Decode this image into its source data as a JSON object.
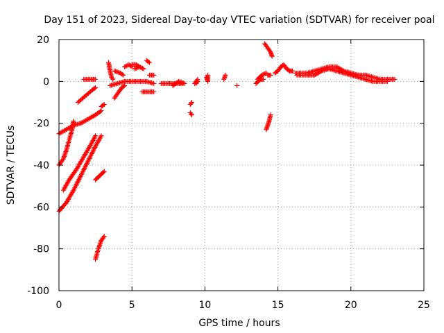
{
  "chart_data": {
    "type": "scatter",
    "title": "Day 151 of 2023, Sidereal Day-to-day VTEC variation (SDTVAR) for receiver poal",
    "xlabel": "GPS time / hours",
    "ylabel": "SDTVAR / TECUs",
    "xlim": [
      0,
      25
    ],
    "ylim": [
      -100,
      20
    ],
    "xticks": [
      0,
      5,
      10,
      15,
      20,
      25
    ],
    "yticks": [
      -100,
      -80,
      -60,
      -40,
      -20,
      0,
      20
    ],
    "grid": true,
    "marker": "+",
    "color": "#ff0000",
    "segments": [
      [
        [
          0.0,
          -25
        ],
        [
          0.5,
          -23
        ],
        [
          1.0,
          -21
        ],
        [
          1.5,
          -20
        ]
      ],
      [
        [
          1.5,
          -20
        ],
        [
          2.0,
          -18
        ],
        [
          2.5,
          -16
        ],
        [
          2.9,
          -14
        ]
      ],
      [
        [
          0.0,
          -40
        ],
        [
          0.3,
          -37
        ],
        [
          0.5,
          -33
        ],
        [
          0.7,
          -28
        ],
        [
          0.9,
          -23
        ],
        [
          1.0,
          -19
        ]
      ],
      [
        [
          0.0,
          -62
        ],
        [
          0.5,
          -58
        ],
        [
          1.0,
          -52
        ],
        [
          1.5,
          -45
        ],
        [
          2.0,
          -38
        ],
        [
          2.5,
          -31
        ],
        [
          2.9,
          -26
        ]
      ],
      [
        [
          0.3,
          -52
        ],
        [
          0.7,
          -47
        ],
        [
          1.2,
          -42
        ],
        [
          1.7,
          -36
        ],
        [
          2.2,
          -30
        ],
        [
          2.5,
          -26
        ]
      ],
      [
        [
          1.3,
          -10
        ],
        [
          1.8,
          -7
        ],
        [
          2.3,
          -4
        ],
        [
          2.5,
          -3
        ]
      ],
      [
        [
          1.7,
          1
        ],
        [
          2.2,
          1
        ],
        [
          2.5,
          1
        ]
      ],
      [
        [
          2.9,
          -12
        ],
        [
          3.1,
          -11
        ]
      ],
      [
        [
          2.5,
          -85
        ],
        [
          2.7,
          -80
        ],
        [
          2.9,
          -76
        ],
        [
          3.1,
          -74
        ]
      ],
      [
        [
          2.5,
          -47
        ],
        [
          2.8,
          -45
        ],
        [
          3.1,
          -43
        ]
      ],
      [
        [
          3.4,
          9
        ],
        [
          3.5,
          5
        ],
        [
          3.6,
          2
        ],
        [
          3.7,
          1
        ]
      ],
      [
        [
          3.5,
          -2
        ],
        [
          4.0,
          -1
        ],
        [
          4.5,
          0
        ],
        [
          5.0,
          0
        ],
        [
          5.5,
          0
        ],
        [
          6.0,
          0
        ],
        [
          6.5,
          -1
        ]
      ],
      [
        [
          3.8,
          5
        ],
        [
          4.2,
          4
        ],
        [
          4.4,
          3
        ]
      ],
      [
        [
          3.8,
          -8
        ],
        [
          4.1,
          -5
        ],
        [
          4.3,
          -3
        ],
        [
          4.5,
          -2
        ]
      ],
      [
        [
          4.5,
          7
        ],
        [
          4.8,
          8
        ],
        [
          5.0,
          7
        ]
      ],
      [
        [
          5.2,
          6
        ],
        [
          5.5,
          7
        ],
        [
          5.8,
          6
        ]
      ],
      [
        [
          5.0,
          8
        ],
        [
          5.3,
          8
        ],
        [
          5.5,
          7
        ]
      ],
      [
        [
          5.7,
          -5
        ],
        [
          6.1,
          -5
        ],
        [
          6.5,
          -5
        ]
      ],
      [
        [
          6.0,
          10
        ],
        [
          6.2,
          9
        ]
      ],
      [
        [
          6.2,
          3
        ],
        [
          6.5,
          3
        ]
      ],
      [
        [
          7.0,
          -1
        ],
        [
          7.5,
          -1
        ],
        [
          8.0,
          -1
        ],
        [
          8.5,
          -1
        ]
      ],
      [
        [
          7.8,
          -2
        ],
        [
          8.2,
          0
        ],
        [
          8.6,
          -1
        ]
      ],
      [
        [
          9.0,
          -11
        ],
        [
          9.1,
          -10
        ]
      ],
      [
        [
          9.0,
          -15
        ],
        [
          9.1,
          -16
        ]
      ],
      [
        [
          9.3,
          -1
        ],
        [
          9.5,
          1
        ]
      ],
      [
        [
          9.4,
          -1
        ],
        [
          9.5,
          0
        ]
      ],
      [
        [
          10.1,
          2
        ],
        [
          10.2,
          0
        ],
        [
          10.2,
          3
        ]
      ],
      [
        [
          11.3,
          1
        ],
        [
          11.4,
          3
        ]
      ],
      [
        [
          12.2,
          -2
        ]
      ],
      [
        [
          13.5,
          -1
        ],
        [
          13.8,
          1
        ],
        [
          14.0,
          1
        ]
      ],
      [
        [
          13.6,
          1
        ],
        [
          13.9,
          3
        ],
        [
          14.2,
          4
        ]
      ],
      [
        [
          14.2,
          -23
        ],
        [
          14.3,
          -21
        ],
        [
          14.4,
          -19
        ],
        [
          14.5,
          -16
        ]
      ],
      [
        [
          14.1,
          18
        ],
        [
          14.3,
          16
        ],
        [
          14.5,
          14
        ],
        [
          14.6,
          12
        ]
      ],
      [
        [
          14.3,
          3
        ],
        [
          14.5,
          3
        ]
      ],
      [
        [
          14.8,
          4
        ],
        [
          15.0,
          5
        ],
        [
          15.2,
          7
        ],
        [
          15.4,
          8
        ],
        [
          15.6,
          6
        ],
        [
          15.8,
          5
        ]
      ],
      [
        [
          15.8,
          5
        ],
        [
          16.0,
          5
        ]
      ],
      [
        [
          16.2,
          4
        ],
        [
          17.0,
          4
        ],
        [
          18.0,
          6
        ],
        [
          18.5,
          7
        ],
        [
          19.0,
          7
        ],
        [
          19.5,
          5
        ],
        [
          20.0,
          4
        ],
        [
          20.5,
          3
        ],
        [
          21.0,
          3
        ],
        [
          21.5,
          2
        ],
        [
          22.0,
          1
        ],
        [
          22.5,
          1
        ],
        [
          23.0,
          1
        ]
      ],
      [
        [
          16.3,
          3
        ],
        [
          17.0,
          3
        ],
        [
          17.5,
          3
        ],
        [
          18.0,
          5
        ],
        [
          18.5,
          6
        ],
        [
          19.5,
          4
        ],
        [
          20.0,
          3
        ],
        [
          20.5,
          2
        ],
        [
          21.0,
          1
        ],
        [
          21.5,
          0
        ],
        [
          22.0,
          0
        ],
        [
          22.5,
          0
        ]
      ]
    ]
  }
}
